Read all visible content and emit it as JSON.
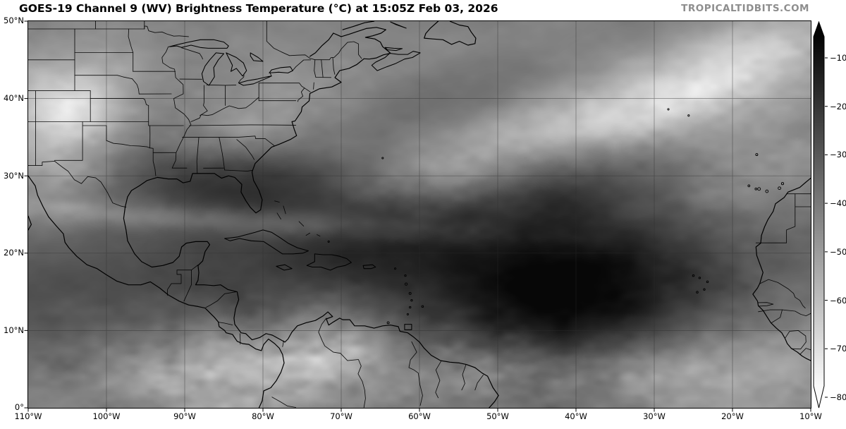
{
  "header": {
    "title": "GOES-19 Channel 9 (WV) Brightness Temperature (°C) at 15:05Z Feb 03, 2026",
    "watermark": "TROPICALTIDBITS.COM",
    "watermark_color": "#8e8e8e"
  },
  "map": {
    "lat_tick_labels": [
      "50°N",
      "40°N",
      "30°N",
      "20°N",
      "10°N",
      "0°"
    ],
    "lon_tick_labels": [
      "110°W",
      "100°W",
      "90°W",
      "80°W",
      "70°W",
      "60°W",
      "50°W",
      "40°W",
      "30°W",
      "20°W",
      "10°W"
    ]
  },
  "colorbar": {
    "tick_labels": [
      "−10",
      "−20",
      "−30",
      "−40",
      "−50",
      "−60",
      "−70",
      "−80"
    ],
    "gradient_top_color": "#040404",
    "gradient_bottom_color": "#fafafa"
  }
}
